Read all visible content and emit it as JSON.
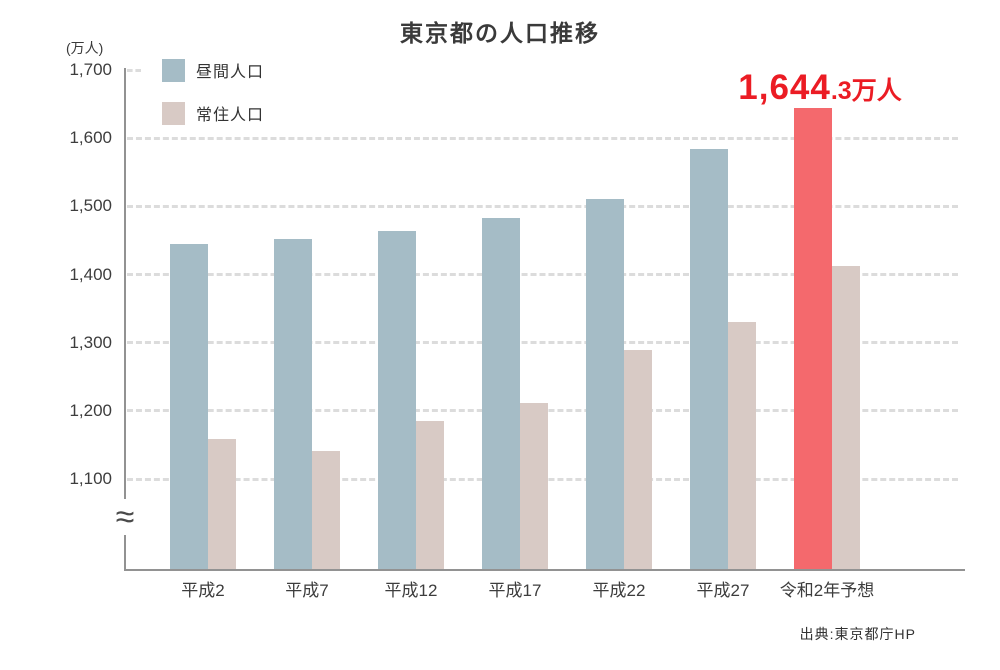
{
  "title": "東京都の人口推移",
  "y_unit": "(万人)",
  "axis_break_symbol": "≈",
  "source": "出典:東京都庁HP",
  "legend": [
    {
      "label": "昼間人口",
      "color": "#a5bcc6"
    },
    {
      "label": "常住人口",
      "color": "#d8cac5"
    }
  ],
  "annotation": {
    "text": "1,644.3万人",
    "value_main": "1,644",
    "value_sub": ".3万人",
    "color": "#eb1c24"
  },
  "chart_data": {
    "type": "bar",
    "title": "東京都の人口推移",
    "ylabel": "(万人)",
    "categories": [
      "平成2",
      "平成7",
      "平成12",
      "平成17",
      "平成22",
      "平成27",
      "令和2年予想"
    ],
    "series": [
      {
        "name": "昼間人口",
        "color": "#a5bcc6",
        "values": [
          1445,
          1452,
          1464,
          1483,
          1511,
          1584,
          1644.3
        ]
      },
      {
        "name": "常住人口",
        "color": "#d8cac5",
        "values": [
          1158,
          1141,
          1185,
          1212,
          1289,
          1330,
          1412
        ]
      }
    ],
    "highlight": {
      "category": "令和2年予想",
      "series": "昼間人口",
      "color": "#f4696d",
      "label": "1,644.3万人"
    },
    "yticks": [
      1100,
      1200,
      1300,
      1400,
      1500,
      1600,
      1700
    ],
    "ytick_labels": [
      "1,100",
      "1,200",
      "1,300",
      "1,400",
      "1,500",
      "1,600",
      "1,700"
    ],
    "ylim_display": [
      1100,
      1700
    ],
    "axis_break": true,
    "grid": "dashed horizontal",
    "legend_position": "top-left"
  }
}
